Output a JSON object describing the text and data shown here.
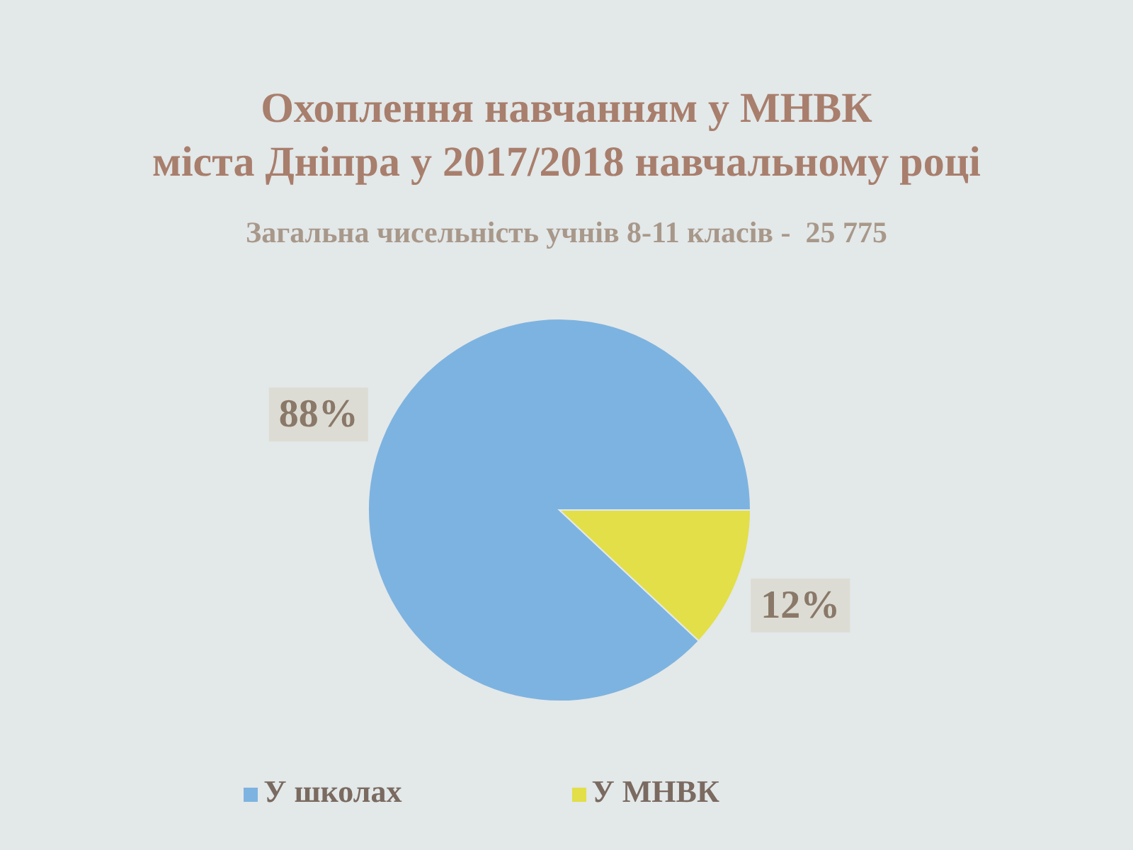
{
  "chart_data": {
    "type": "pie",
    "title": "Охоплення навчанням у МНВК\nміста Дніпра у 2017/2018 навчальному році",
    "subtitle": "Загальна чисельність учнів 8-11 класів -  25 775",
    "categories": [
      "У школах",
      "У МНВК"
    ],
    "values": [
      88,
      12
    ],
    "colors": [
      "#7db3e0",
      "#e2df48"
    ],
    "value_labels": [
      "88%",
      "12%"
    ],
    "legend": "bottom"
  }
}
